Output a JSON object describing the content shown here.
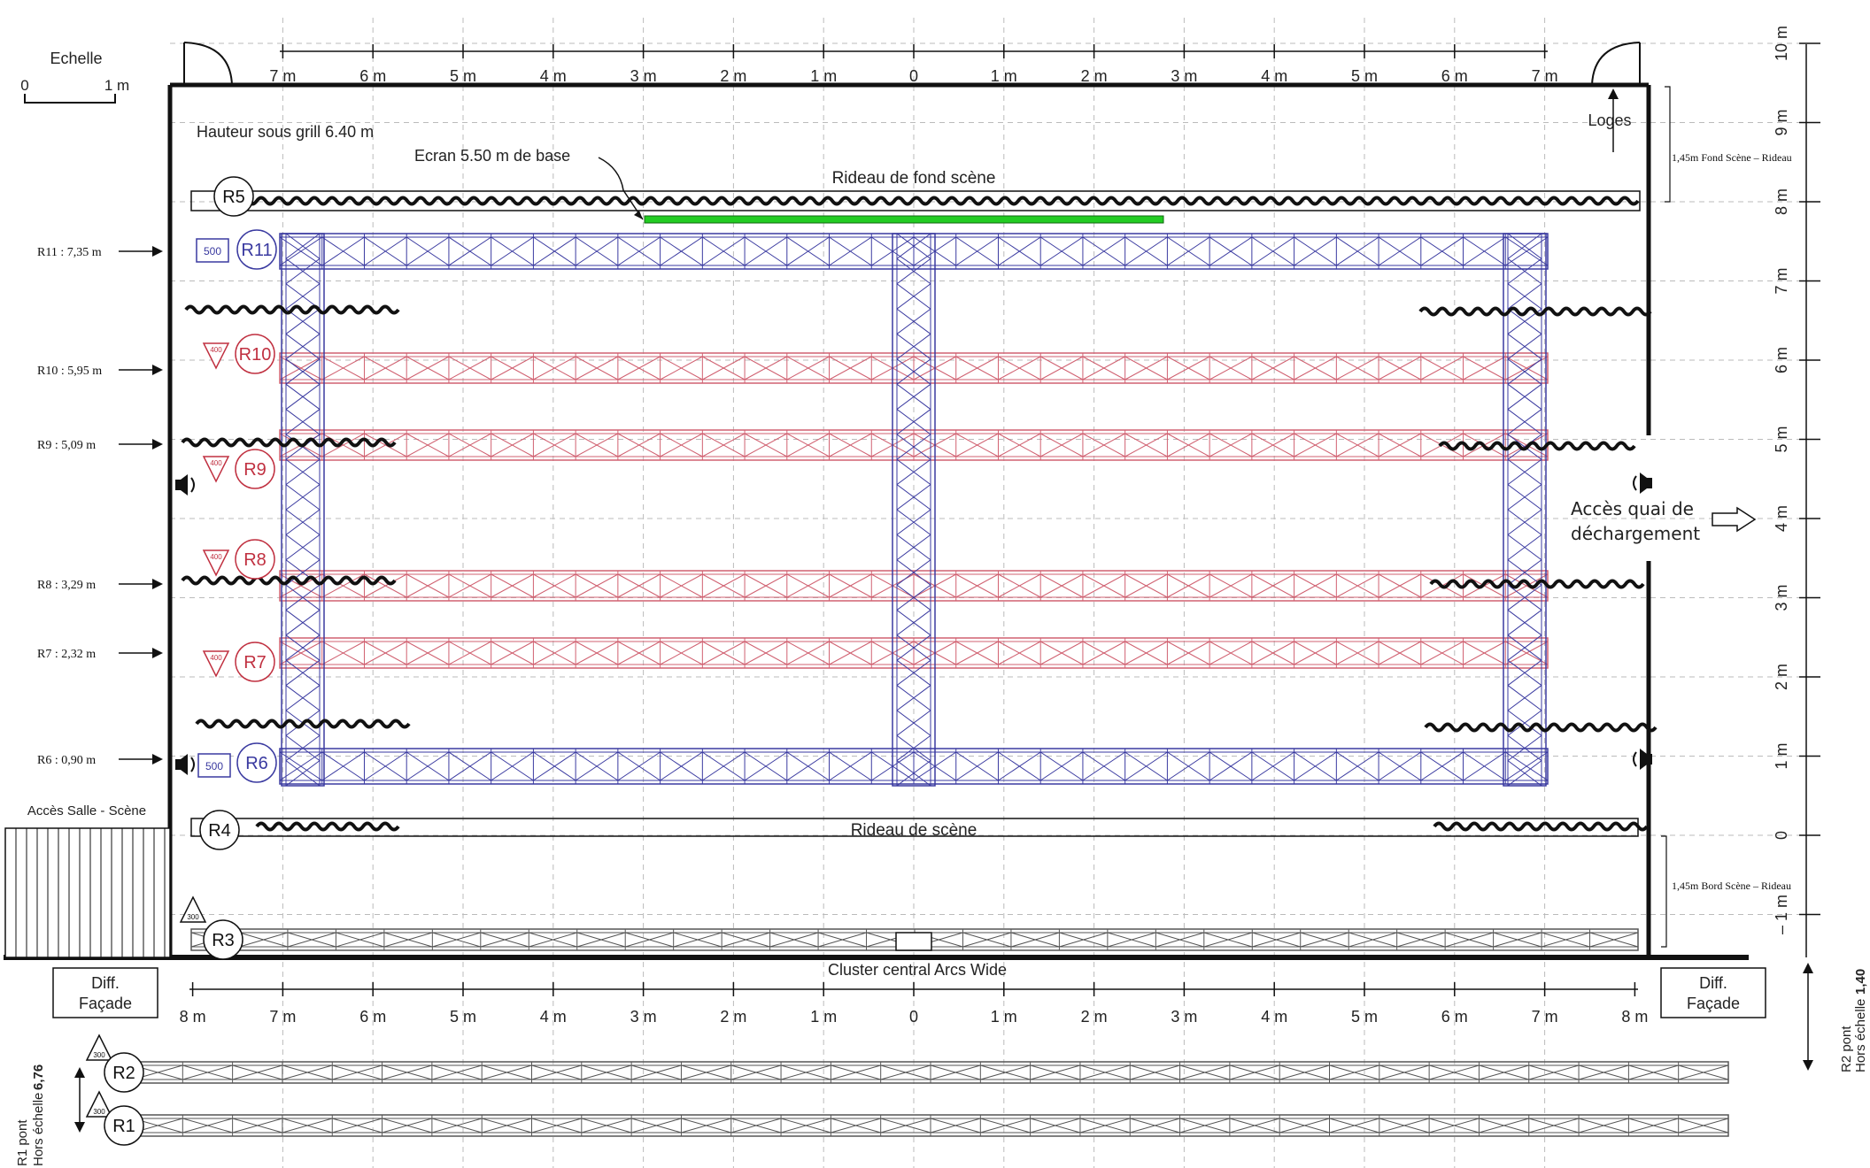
{
  "scale": {
    "title": "Echelle",
    "zero": "0",
    "one": "1 m"
  },
  "top_ruler": [
    "7 m",
    "6 m",
    "5 m",
    "4 m",
    "3 m",
    "2 m",
    "1 m",
    "0",
    "1 m",
    "2 m",
    "3 m",
    "4 m",
    "5 m",
    "6 m",
    "7 m"
  ],
  "bottom_ruler": [
    "8 m",
    "7 m",
    "6 m",
    "5 m",
    "4 m",
    "3 m",
    "2 m",
    "1 m",
    "0",
    "1 m",
    "2 m",
    "3 m",
    "4 m",
    "5 m",
    "6 m",
    "7 m",
    "8 m"
  ],
  "right_ruler": [
    "10 m",
    "9 m",
    "8 m",
    "7 m",
    "6 m",
    "5 m",
    "4 m",
    "3 m",
    "2 m",
    "1 m",
    "0",
    "– 1 m"
  ],
  "texts": {
    "grill_height": "Hauteur sous grill 6.40 m",
    "screen": "Ecran 5.50 m de base",
    "back_curtain": "Rideau de fond scène",
    "stage_curtain": "Rideau de scène",
    "cluster": "Cluster central Arcs Wide",
    "loges": "Loges",
    "dock_line1": "Accès quai de",
    "dock_line2": "déchargement",
    "hall_access": "Accès Salle - Scène",
    "back_gap": "1,45m Fond Scène – Rideau",
    "front_gap": "1,45m Bord Scène – Rideau",
    "diff_line1": "Diff.",
    "diff_line2": "Façade",
    "r2_line1": "R2 pont",
    "r2_line2": "Hors échelle",
    "r2_value": "1,40",
    "r1_line1": "R1 pont",
    "r1_line2": "Hors échelle",
    "r1_value": "6,76"
  },
  "heights": {
    "r11": "R11 : 7,35 m",
    "r10": "R10 : 5,95 m",
    "r9": "R9 : 5,09 m",
    "r8": "R8 : 3,29 m",
    "r7": "R7 : 2,32 m",
    "r6": "R6 : 0,90 m"
  },
  "rigs": {
    "r1": "R1",
    "r2": "R2",
    "r3": "R3",
    "r4": "R4",
    "r5": "R5",
    "r6": "R6",
    "r7": "R7",
    "r8": "R8",
    "r9": "R9",
    "r10": "R10",
    "r11": "R11"
  },
  "loads": {
    "r11": "500",
    "r6": "500",
    "red": "400",
    "r3": "300",
    "r2": "300",
    "r1": "300"
  },
  "colors": {
    "blue_truss": "#3a3aa0",
    "red_truss": "#d06070",
    "screen": "#22cc22",
    "grid": "#bbbbbb"
  }
}
